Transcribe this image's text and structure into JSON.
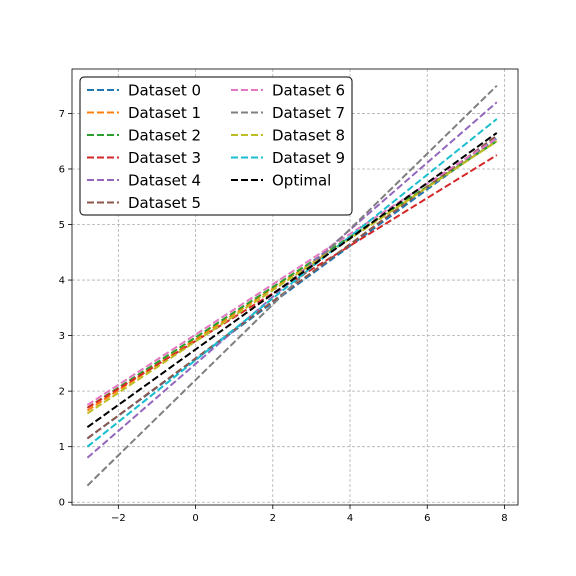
{
  "chart_data": {
    "type": "line",
    "title": "",
    "xlabel": "",
    "ylabel": "",
    "xlim": [
      -3.2,
      8.35
    ],
    "ylim": [
      -0.05,
      7.8
    ],
    "xticks": [
      -2,
      0,
      2,
      4,
      6,
      8
    ],
    "yticks": [
      0,
      1,
      2,
      3,
      4,
      5,
      6,
      7
    ],
    "xtick_labels": [
      "−2",
      "0",
      "2",
      "4",
      "6",
      "8"
    ],
    "ytick_labels": [
      "0",
      "1",
      "2",
      "3",
      "4",
      "5",
      "6",
      "7"
    ],
    "grid": true,
    "line_style": "dashed",
    "legend_location": "top-left",
    "legend_columns": 2,
    "series": [
      {
        "name": "Dataset 0",
        "color": "#1f77b4",
        "x": [
          -2.8,
          7.8
        ],
        "y": [
          1.15,
          6.55
        ]
      },
      {
        "name": "Dataset 1",
        "color": "#ff7f0e",
        "x": [
          -2.8,
          7.8
        ],
        "y": [
          1.65,
          6.5
        ]
      },
      {
        "name": "Dataset 2",
        "color": "#2ca02c",
        "x": [
          -2.8,
          7.8
        ],
        "y": [
          1.7,
          6.5
        ]
      },
      {
        "name": "Dataset 3",
        "color": "#d62728",
        "x": [
          -2.8,
          7.8
        ],
        "y": [
          1.7,
          6.25
        ]
      },
      {
        "name": "Dataset 4",
        "color": "#9467bd",
        "x": [
          -2.8,
          7.8
        ],
        "y": [
          0.8,
          7.2
        ]
      },
      {
        "name": "Dataset 5",
        "color": "#8c564b",
        "x": [
          -2.8,
          7.8
        ],
        "y": [
          1.15,
          6.6
        ]
      },
      {
        "name": "Dataset 6",
        "color": "#e377c2",
        "x": [
          -2.8,
          7.8
        ],
        "y": [
          1.75,
          6.55
        ]
      },
      {
        "name": "Dataset 7",
        "color": "#7f7f7f",
        "x": [
          -2.8,
          7.8
        ],
        "y": [
          0.3,
          7.5
        ]
      },
      {
        "name": "Dataset 8",
        "color": "#bcbd22",
        "x": [
          -2.8,
          7.8
        ],
        "y": [
          1.6,
          6.5
        ]
      },
      {
        "name": "Dataset 9",
        "color": "#17becf",
        "x": [
          -2.8,
          7.8
        ],
        "y": [
          1.0,
          6.9
        ]
      },
      {
        "name": "Optimal",
        "color": "#000000",
        "x": [
          -2.8,
          7.8
        ],
        "y": [
          1.35,
          6.65
        ]
      }
    ]
  }
}
